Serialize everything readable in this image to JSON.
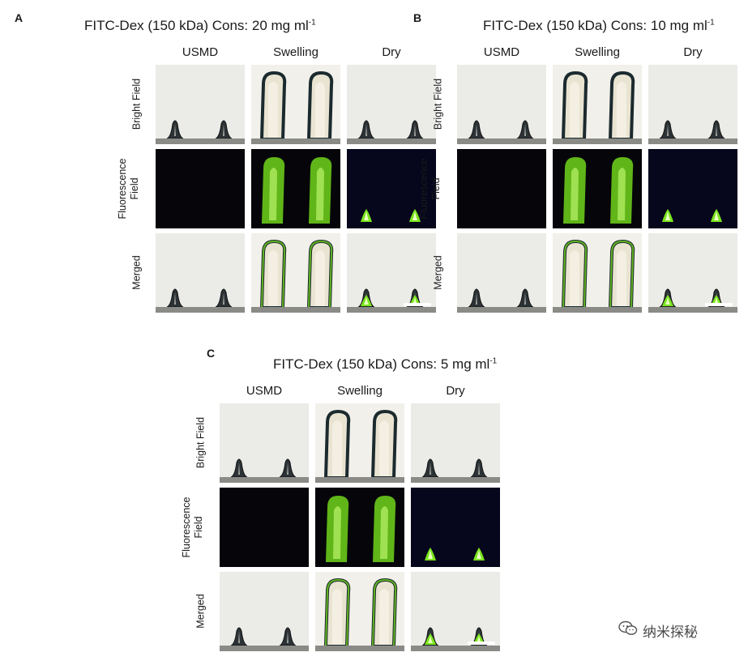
{
  "panels": [
    {
      "letter": "A",
      "title_main": "FITC-Dex (150 kDa) Cons: 20 mg ml",
      "title_sup": "-1",
      "columns": [
        "USMD",
        "Swelling",
        "Dry"
      ],
      "rows": [
        "Bright Field",
        "Fluorescence Field",
        "Merged"
      ]
    },
    {
      "letter": "B",
      "title_main": "FITC-Dex (150 kDa) Cons: 10 mg ml",
      "title_sup": "-1",
      "columns": [
        "USMD",
        "Swelling",
        "Dry"
      ],
      "rows": [
        "Bright Field",
        "Fluorescence Field",
        "Merged"
      ]
    },
    {
      "letter": "C",
      "title_main": "FITC-Dex (150 kDa) Cons: 5 mg ml",
      "title_sup": "-1",
      "columns": [
        "USMD",
        "Swelling",
        "Dry"
      ],
      "rows": [
        "Bright Field",
        "Fluorescence Field",
        "Merged"
      ]
    }
  ],
  "watermark": {
    "icon": "wechat-icon",
    "text": "纳米探秘"
  },
  "colors": {
    "bright_bg": "#ebebe7",
    "fluor_bg_dark": "#05050a",
    "fluor_bg_dry": "#06061c",
    "fluorescence": "#7ff01e",
    "stage": "#8a8a86"
  }
}
